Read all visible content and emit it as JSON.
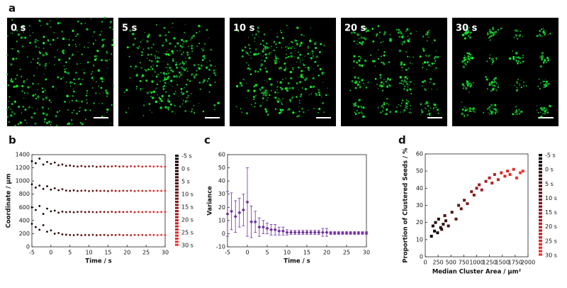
{
  "panel_a": {
    "label": "a",
    "images": [
      {
        "label": "0 s"
      },
      {
        "label": "5 s"
      },
      {
        "label": "10 s"
      },
      {
        "label": "20 s"
      },
      {
        "label": "30 s"
      }
    ]
  },
  "chart_data": [
    {
      "type": "scatter",
      "panel_label": "b",
      "x_label": "Time / s",
      "y_label": "Coordinate / µm",
      "x": [
        -5,
        -4,
        -3,
        -2,
        -1,
        0,
        1,
        2,
        3,
        4,
        5,
        6,
        7,
        8,
        9,
        10,
        11,
        12,
        13,
        14,
        15,
        16,
        17,
        18,
        19,
        20,
        21,
        22,
        23,
        24,
        25,
        26,
        27,
        28,
        29,
        30
      ],
      "series": [
        {
          "values": [
            1300,
            1270,
            1340,
            1250,
            1290,
            1260,
            1280,
            1240,
            1250,
            1230,
            1235,
            1225,
            1220,
            1228,
            1218,
            1222,
            1225,
            1215,
            1220,
            1224,
            1218,
            1221,
            1226,
            1219,
            1222,
            1217,
            1223,
            1220,
            1225,
            1218,
            1221,
            1224,
            1219,
            1222,
            1220,
            1218
          ]
        },
        {
          "values": [
            950,
            900,
            930,
            880,
            920,
            870,
            890,
            860,
            875,
            855,
            850,
            858,
            848,
            852,
            855,
            847,
            850,
            853,
            849,
            851,
            846,
            854,
            850,
            848,
            852,
            849,
            853,
            847,
            851,
            850,
            848,
            852,
            849,
            851,
            850,
            853
          ]
        },
        {
          "values": [
            600,
            560,
            620,
            500,
            580,
            540,
            550,
            520,
            535,
            528,
            532,
            525,
            530,
            533,
            527,
            531,
            529,
            526,
            532,
            530,
            528,
            534,
            527,
            531,
            529,
            530,
            533,
            526,
            530,
            528,
            532,
            529,
            531,
            527,
            530,
            532
          ]
        },
        {
          "values": [
            350,
            300,
            260,
            330,
            230,
            250,
            200,
            210,
            190,
            185,
            180,
            178,
            184,
            176,
            181,
            179,
            183,
            177,
            180,
            182,
            175,
            181,
            179,
            184,
            178,
            180,
            176,
            182,
            179,
            181,
            177,
            183,
            180,
            178,
            182,
            179
          ]
        }
      ],
      "xlim": [
        -5,
        30
      ],
      "xticks": [
        -5,
        0,
        5,
        10,
        15,
        20,
        25,
        30
      ],
      "ylim": [
        0,
        1400
      ],
      "yticks": [
        0,
        200,
        400,
        600,
        800,
        1000,
        1200,
        1400
      ],
      "colormap": [
        "#000000",
        "#ff3030"
      ],
      "clim": [
        -5,
        30
      ],
      "colorbar_labels": [
        "-5 s",
        "0 s",
        "5 s",
        "10 s",
        "15 s",
        "20 s",
        "25 s",
        "30 s"
      ]
    },
    {
      "type": "errorbar",
      "panel_label": "c",
      "x_label": "Time / s",
      "y_label": "Variance",
      "color": "#7030a0",
      "x": [
        -5,
        -4,
        -3,
        -2,
        -1,
        0,
        1,
        2,
        3,
        4,
        5,
        6,
        7,
        8,
        9,
        10,
        11,
        12,
        13,
        14,
        15,
        16,
        17,
        18,
        19,
        20,
        21,
        22,
        23,
        24,
        25,
        26,
        27,
        28,
        29,
        30
      ],
      "values": [
        15,
        17,
        13,
        16,
        18,
        24,
        9,
        9,
        5,
        5,
        4,
        3,
        3,
        2,
        2,
        1,
        1,
        1,
        1,
        1,
        1,
        1,
        1,
        1,
        1,
        1,
        0.5,
        0.5,
        0.5,
        0.5,
        0.5,
        0.5,
        0.5,
        0.5,
        0.5,
        0.5
      ],
      "errors": [
        17,
        14,
        12,
        11,
        12,
        26,
        12,
        8,
        7,
        5,
        4,
        4,
        4,
        3,
        3,
        2,
        1.5,
        1.5,
        1.5,
        1.5,
        1.5,
        1.5,
        1.5,
        1.5,
        3,
        3,
        1,
        1,
        1,
        1,
        1,
        1,
        1,
        1,
        1,
        1
      ],
      "xlim": [
        -5,
        30
      ],
      "xticks": [
        -5,
        0,
        5,
        10,
        15,
        20,
        25,
        30
      ],
      "ylim": [
        -10,
        60
      ],
      "yticks": [
        -10,
        0,
        10,
        20,
        30,
        40,
        50,
        60
      ]
    },
    {
      "type": "scatter",
      "panel_label": "d",
      "x_label": "Median Cluster Area / µm²",
      "y_label": "Proportion of Clustered Seeds / %",
      "x": [
        120,
        180,
        150,
        240,
        200,
        300,
        260,
        350,
        320,
        400,
        450,
        380,
        520,
        600,
        650,
        700,
        760,
        820,
        900,
        950,
        1000,
        1050,
        1100,
        1180,
        1250,
        1300,
        1350,
        1420,
        1480,
        1550,
        1600,
        1650,
        1720,
        1780,
        1850,
        1900
      ],
      "series": [
        {
          "values": [
            12,
            15,
            18,
            14,
            20,
            17,
            22,
            19,
            16,
            21,
            18,
            24,
            26,
            22,
            30,
            28,
            33,
            31,
            38,
            36,
            40,
            42,
            39,
            44,
            46,
            43,
            48,
            45,
            49,
            47,
            50,
            48,
            51,
            46,
            49,
            50
          ],
          "t": [
            -5,
            -4,
            -3,
            -2,
            -1,
            0,
            1,
            2,
            3,
            4,
            5,
            6,
            7,
            8,
            9,
            10,
            11,
            12,
            13,
            14,
            15,
            16,
            17,
            18,
            19,
            20,
            21,
            22,
            23,
            24,
            25,
            26,
            27,
            28,
            29,
            30
          ]
        }
      ],
      "xlim": [
        0,
        2000
      ],
      "xticks": [
        0,
        250,
        500,
        750,
        1000,
        1250,
        1500,
        1750,
        2000
      ],
      "ylim": [
        0,
        60
      ],
      "yticks": [
        0,
        10,
        20,
        30,
        40,
        50,
        60
      ],
      "colormap": [
        "#000000",
        "#ff3030"
      ],
      "clim": [
        -5,
        30
      ],
      "colorbar_labels": [
        "-5 s",
        "0 s",
        "5 s",
        "10 s",
        "15 s",
        "20 s",
        "25 s",
        "30 s"
      ]
    }
  ]
}
